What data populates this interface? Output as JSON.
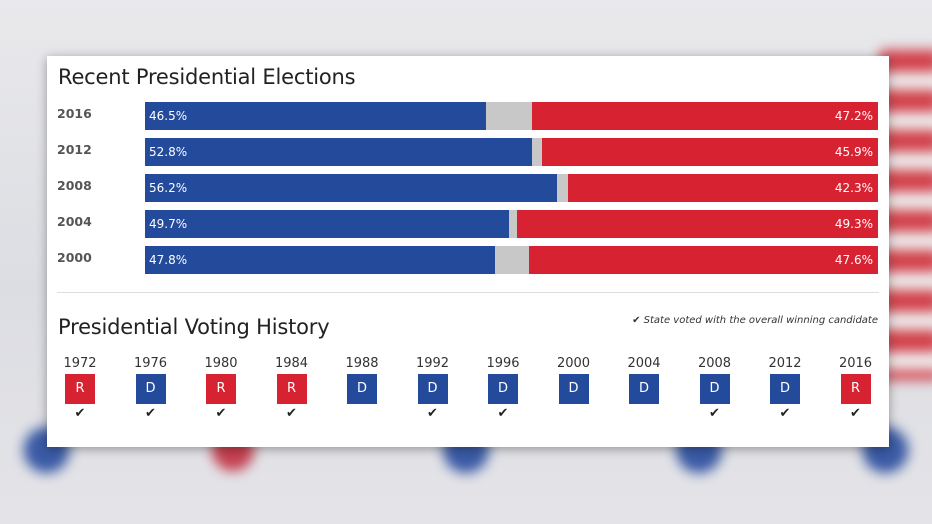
{
  "chart_data": {
    "type": "bar",
    "title": "Recent Presidential Elections",
    "categories": [
      "2016",
      "2012",
      "2008",
      "2004",
      "2000"
    ],
    "series": [
      {
        "party": "D",
        "values": [
          46.5,
          52.8,
          56.2,
          49.7,
          47.8
        ],
        "labels": [
          "46.5%",
          "52.8%",
          "56.2%",
          "49.7%",
          "47.8%"
        ]
      },
      {
        "party": "R",
        "values": [
          47.2,
          45.9,
          42.3,
          49.3,
          47.6
        ],
        "labels": [
          "47.2%",
          "45.9%",
          "42.3%",
          "49.3%",
          "47.6%"
        ]
      }
    ],
    "xlim": [
      0,
      100
    ],
    "colors": {
      "D": "#234a9b",
      "R": "#d72331",
      "other": "#c8c8c8"
    }
  },
  "history": {
    "title": "Presidential Voting History",
    "note": "State voted with the overall winning candidate",
    "items": [
      {
        "year": "1972",
        "party": "R",
        "winner": true
      },
      {
        "year": "1976",
        "party": "D",
        "winner": true
      },
      {
        "year": "1980",
        "party": "R",
        "winner": true
      },
      {
        "year": "1984",
        "party": "R",
        "winner": true
      },
      {
        "year": "1988",
        "party": "D",
        "winner": false
      },
      {
        "year": "1992",
        "party": "D",
        "winner": true
      },
      {
        "year": "1996",
        "party": "D",
        "winner": true
      },
      {
        "year": "2000",
        "party": "D",
        "winner": false
      },
      {
        "year": "2004",
        "party": "D",
        "winner": false
      },
      {
        "year": "2008",
        "party": "D",
        "winner": true
      },
      {
        "year": "2012",
        "party": "D",
        "winner": true
      },
      {
        "year": "2016",
        "party": "R",
        "winner": true
      }
    ]
  }
}
